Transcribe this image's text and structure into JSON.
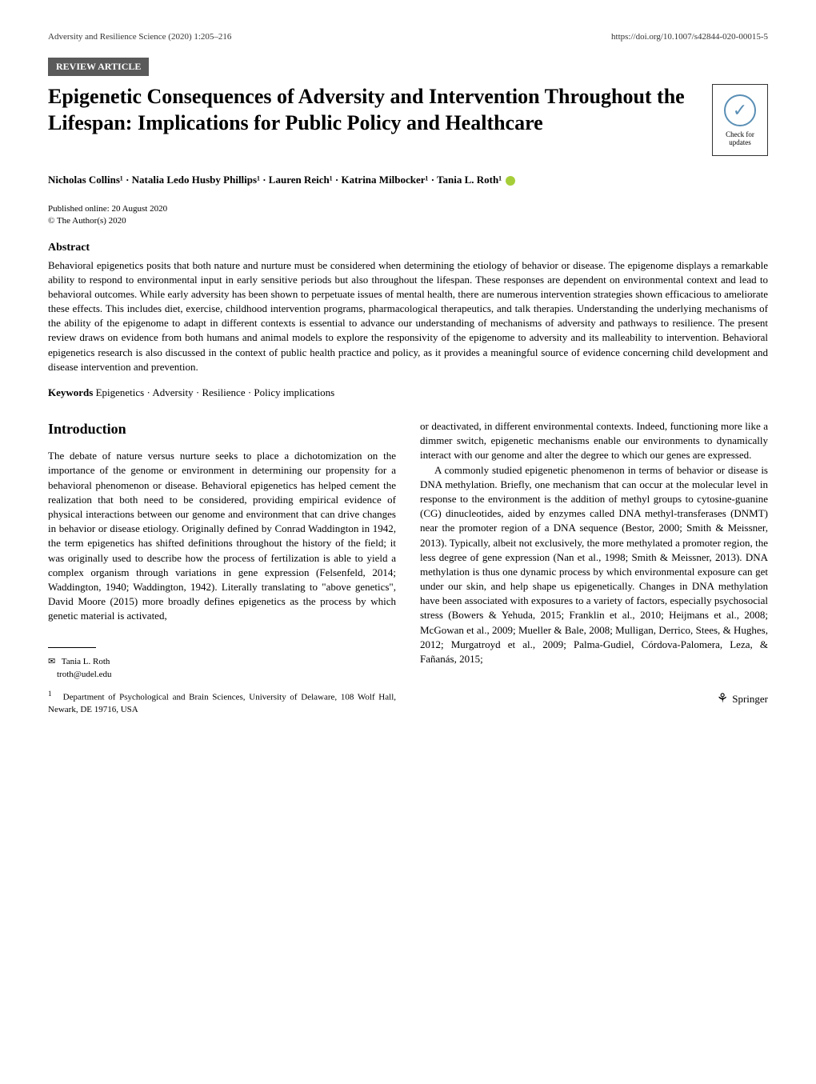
{
  "header": {
    "journal_line": "Adversity and Resilience Science (2020) 1:205–216",
    "doi_line": "https://doi.org/10.1007/s42844-020-00015-5"
  },
  "article_type": "REVIEW ARTICLE",
  "check_updates": {
    "line1": "Check for",
    "line2": "updates"
  },
  "title": "Epigenetic Consequences of Adversity and Intervention Throughout the Lifespan: Implications for Public Policy and Healthcare",
  "authors_line": "Nicholas Collins¹ · Natalia Ledo Husby Phillips¹ · Lauren Reich¹ · Katrina Milbocker¹ · Tania L. Roth¹",
  "pub_date": "Published online: 20 August 2020",
  "copyright": "© The Author(s) 2020",
  "abstract": {
    "heading": "Abstract",
    "text": "Behavioral epigenetics posits that both nature and nurture must be considered when determining the etiology of behavior or disease. The epigenome displays a remarkable ability to respond to environmental input in early sensitive periods but also throughout the lifespan. These responses are dependent on environmental context and lead to behavioral outcomes. While early adversity has been shown to perpetuate issues of mental health, there are numerous intervention strategies shown efficacious to ameliorate these effects. This includes diet, exercise, childhood intervention programs, pharmacological therapeutics, and talk therapies. Understanding the underlying mechanisms of the ability of the epigenome to adapt in different contexts is essential to advance our understanding of mechanisms of adversity and pathways to resilience. The present review draws on evidence from both humans and animal models to explore the responsivity of the epigenome to adversity and its malleability to intervention. Behavioral epigenetics research is also discussed in the context of public health practice and policy, as it provides a meaningful source of evidence concerning child development and disease intervention and prevention."
  },
  "keywords": {
    "label": "Keywords",
    "text": "Epigenetics · Adversity · Resilience · Policy implications"
  },
  "introduction": {
    "heading": "Introduction",
    "col1_p1": "The debate of nature versus nurture seeks to place a dichotomization on the importance of the genome or environment in determining our propensity for a behavioral phenomenon or disease. Behavioral epigenetics has helped cement the realization that both need to be considered, providing empirical evidence of physical interactions between our genome and environment that can drive changes in behavior or disease etiology. Originally defined by Conrad Waddington in 1942, the term epigenetics has shifted definitions throughout the history of the field; it was originally used to describe how the process of fertilization is able to yield a complex organism through variations in gene expression (Felsenfeld, 2014; Waddington, 1940; Waddington, 1942). Literally translating to \"above genetics\", David Moore (2015) more broadly defines epigenetics as the process by which genetic material is activated,",
    "col2_p1": "or deactivated, in different environmental contexts. Indeed, functioning more like a dimmer switch, epigenetic mechanisms enable our environments to dynamically interact with our genome and alter the degree to which our genes are expressed.",
    "col2_p2": "A commonly studied epigenetic phenomenon in terms of behavior or disease is DNA methylation. Briefly, one mechanism that can occur at the molecular level in response to the environment is the addition of methyl groups to cytosine-guanine (CG) dinucleotides, aided by enzymes called DNA methyl-transferases (DNMT) near the promoter region of a DNA sequence (Bestor, 2000; Smith & Meissner, 2013). Typically, albeit not exclusively, the more methylated a promoter region, the less degree of gene expression (Nan et al., 1998; Smith & Meissner, 2013). DNA methylation is thus one dynamic process by which environmental exposure can get under our skin, and help shape us epigenetically. Changes in DNA methylation have been associated with exposures to a variety of factors, especially psychosocial stress (Bowers & Yehuda, 2015; Franklin et al., 2010; Heijmans et al., 2008; McGowan et al., 2009; Mueller & Bale, 2008; Mulligan, Derrico, Stees, & Hughes, 2012; Murgatroyd et al., 2009; Palma-Gudiel, Córdova-Palomera, Leza, & Fañanás, 2015;"
  },
  "correspondence": {
    "name": "Tania L. Roth",
    "email": "troth@udel.edu"
  },
  "affiliation": {
    "number": "1",
    "text": "Department of Psychological and Brain Sciences, University of Delaware, 108 Wolf Hall, Newark, DE 19716, USA"
  },
  "footer": {
    "publisher": "Springer"
  },
  "colors": {
    "background": "#ffffff",
    "text": "#000000",
    "article_type_bg": "#5a5a5a",
    "article_type_text": "#ffffff",
    "check_circle": "#5a8fb5",
    "orcid": "#a6ce39"
  },
  "typography": {
    "body_font": "Georgia, Times New Roman, serif",
    "title_size": 26,
    "body_size": 13,
    "small_size": 11,
    "heading_size": 18
  }
}
